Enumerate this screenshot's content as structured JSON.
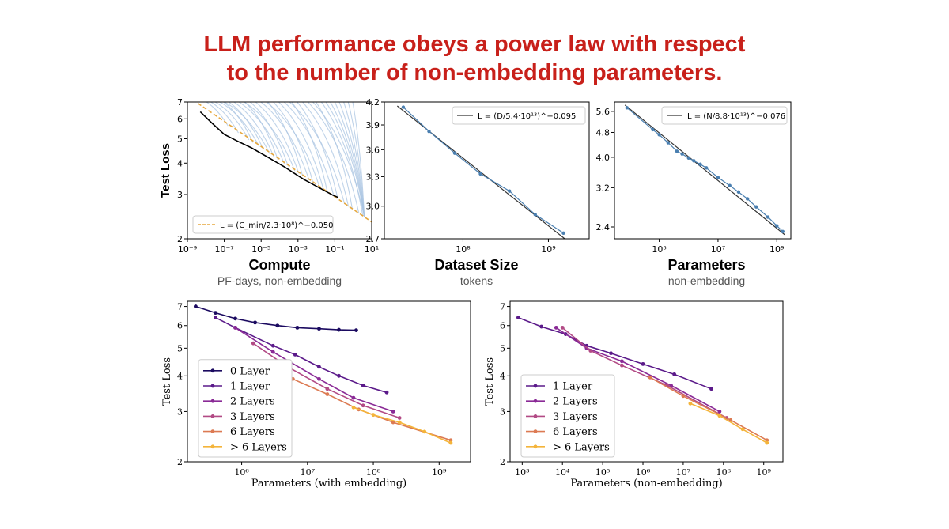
{
  "title_line1": "LLM performance obeys a power law with respect",
  "title_line2": "to the number of non-embedding parameters.",
  "captions": {
    "compute": {
      "main": "Compute",
      "sub": "PF-days, non-embedding"
    },
    "dataset": {
      "main": "Dataset Size",
      "sub": "tokens"
    },
    "params": {
      "main": "Parameters",
      "sub": "non-embedding"
    }
  },
  "colors": {
    "title": "#c8201a",
    "fit_line": "#333333",
    "data_point": "#4a7fb0",
    "dashed_fit": "#e6a73d",
    "light_curve": "#a9c4e2",
    "frontier": "#000000",
    "layers": [
      "#1b0a60",
      "#5b1a8a",
      "#8a2a96",
      "#b24a85",
      "#dc7a52",
      "#f4b43a"
    ]
  },
  "chart_data": [
    {
      "id": "compute",
      "type": "line",
      "xscale": "log",
      "yscale": "log",
      "ylabel": "Test Loss",
      "xlim": [
        1e-09,
        10
      ],
      "ylim": [
        2,
        7
      ],
      "xticks": [
        {
          "v": 1e-09,
          "label": "10⁻⁹"
        },
        {
          "v": 1e-07,
          "label": "10⁻⁷"
        },
        {
          "v": 1e-05,
          "label": "10⁻⁵"
        },
        {
          "v": 0.001,
          "label": "10⁻³"
        },
        {
          "v": 0.1,
          "label": "10⁻¹"
        },
        {
          "v": 10,
          "label": "10¹"
        }
      ],
      "yticks": [
        {
          "v": 2,
          "label": "2"
        },
        {
          "v": 3,
          "label": "3"
        },
        {
          "v": 4,
          "label": "4"
        },
        {
          "v": 5,
          "label": "5"
        },
        {
          "v": 6,
          "label": "6"
        },
        {
          "v": 7,
          "label": "7"
        }
      ],
      "legend": "L = (C_min/2.3·10⁸)^−0.050",
      "legend_position": "lower-left",
      "fit": {
        "A": 230000000.0,
        "alpha": 0.05
      },
      "frontier": [
        [
          5e-09,
          6.4
        ],
        [
          2e-08,
          5.8
        ],
        [
          1e-07,
          5.2
        ],
        [
          5e-07,
          4.9
        ],
        [
          3e-06,
          4.6
        ],
        [
          2e-05,
          4.25
        ],
        [
          0.0002,
          3.85
        ],
        [
          0.002,
          3.45
        ],
        [
          0.02,
          3.15
        ],
        [
          0.08,
          2.98
        ],
        [
          0.15,
          2.92
        ]
      ],
      "light_curves_note": "per-model learning curves"
    },
    {
      "id": "dataset",
      "type": "line",
      "xscale": "log",
      "yscale": "log",
      "xlim": [
        12000000.0,
        3000000000.0
      ],
      "ylim": [
        2.7,
        4.2
      ],
      "xticks": [
        {
          "v": 100000000.0,
          "label": "10⁸"
        },
        {
          "v": 1000000000.0,
          "label": "10⁹"
        }
      ],
      "yticks": [
        {
          "v": 2.7,
          "label": "2.7"
        },
        {
          "v": 3.0,
          "label": "3.0"
        },
        {
          "v": 3.3,
          "label": "3.3"
        },
        {
          "v": 3.6,
          "label": "3.6"
        },
        {
          "v": 3.9,
          "label": "3.9"
        },
        {
          "v": 4.2,
          "label": "4.2"
        }
      ],
      "legend": "L = (D/5.4·10¹³)^−0.095",
      "legend_position": "top-right",
      "fit": {
        "A": 54000000000000.0,
        "alpha": 0.095
      },
      "points": [
        [
          20000000.0,
          4.13
        ],
        [
          40000000.0,
          3.82
        ],
        [
          80000000.0,
          3.56
        ],
        [
          160000000.0,
          3.33
        ],
        [
          350000000.0,
          3.15
        ],
        [
          700000000.0,
          2.92
        ],
        [
          1500000000.0,
          2.75
        ]
      ]
    },
    {
      "id": "params",
      "type": "line",
      "xscale": "log",
      "yscale": "log",
      "xlim": [
        3000.0,
        3000000000.0
      ],
      "ylim": [
        2.2,
        6.0
      ],
      "xticks": [
        {
          "v": 100000.0,
          "label": "10⁵"
        },
        {
          "v": 10000000.0,
          "label": "10⁷"
        },
        {
          "v": 1000000000.0,
          "label": "10⁹"
        }
      ],
      "yticks": [
        {
          "v": 2.4,
          "label": "2.4"
        },
        {
          "v": 3.2,
          "label": "3.2"
        },
        {
          "v": 4.0,
          "label": "4.0"
        },
        {
          "v": 4.8,
          "label": "4.8"
        },
        {
          "v": 5.6,
          "label": "5.6"
        }
      ],
      "legend": "L = (N/8.8·10¹³)^−0.076",
      "legend_position": "top-right",
      "fit": {
        "A": 88000000000000.0,
        "alpha": 0.076
      },
      "points": [
        [
          8000.0,
          5.75
        ],
        [
          60000.0,
          4.9
        ],
        [
          100000.0,
          4.72
        ],
        [
          200000.0,
          4.45
        ],
        [
          400000.0,
          4.18
        ],
        [
          600000.0,
          4.1
        ],
        [
          1000000.0,
          3.98
        ],
        [
          1500000.0,
          3.9
        ],
        [
          2500000.0,
          3.8
        ],
        [
          4000000.0,
          3.7
        ],
        [
          10000000.0,
          3.45
        ],
        [
          25000000.0,
          3.25
        ],
        [
          50000000.0,
          3.1
        ],
        [
          100000000.0,
          2.95
        ],
        [
          200000000.0,
          2.78
        ],
        [
          500000000.0,
          2.58
        ],
        [
          1000000000.0,
          2.42
        ],
        [
          1600000000.0,
          2.32
        ]
      ]
    },
    {
      "id": "layers_with_emb",
      "type": "line",
      "xscale": "log",
      "yscale": "log",
      "xlabel": "Parameters (with embedding)",
      "ylabel": "Test Loss",
      "xlim": [
        150000.0,
        3000000000.0
      ],
      "ylim": [
        2,
        7.3
      ],
      "xticks": [
        {
          "v": 1000000.0,
          "label": "10⁶"
        },
        {
          "v": 10000000.0,
          "label": "10⁷"
        },
        {
          "v": 100000000.0,
          "label": "10⁸"
        },
        {
          "v": 1000000000.0,
          "label": "10⁹"
        }
      ],
      "yticks": [
        {
          "v": 2,
          "label": "2"
        },
        {
          "v": 3,
          "label": "3"
        },
        {
          "v": 4,
          "label": "4"
        },
        {
          "v": 5,
          "label": "5"
        },
        {
          "v": 6,
          "label": "6"
        },
        {
          "v": 7,
          "label": "7"
        }
      ],
      "legend_position": "lower-left",
      "series": [
        {
          "name": "0 Layer",
          "color_index": 0,
          "points": [
            [
              200000.0,
              7.0
            ],
            [
              400000.0,
              6.65
            ],
            [
              800000.0,
              6.35
            ],
            [
              1600000.0,
              6.15
            ],
            [
              3500000.0,
              6.0
            ],
            [
              7000000.0,
              5.9
            ],
            [
              15000000.0,
              5.85
            ],
            [
              30000000.0,
              5.8
            ],
            [
              55000000.0,
              5.78
            ]
          ]
        },
        {
          "name": "1 Layer",
          "color_index": 1,
          "points": [
            [
              400000.0,
              6.4
            ],
            [
              800000.0,
              5.9
            ],
            [
              3000000.0,
              5.1
            ],
            [
              6500000.0,
              4.75
            ],
            [
              15000000.0,
              4.3
            ],
            [
              30000000.0,
              4.0
            ],
            [
              70000000.0,
              3.7
            ],
            [
              160000000.0,
              3.5
            ]
          ]
        },
        {
          "name": "2 Layers",
          "color_index": 2,
          "points": [
            [
              800000.0,
              5.9
            ],
            [
              3000000.0,
              4.85
            ],
            [
              15000000.0,
              3.9
            ],
            [
              50000000.0,
              3.35
            ],
            [
              200000000.0,
              3.0
            ]
          ]
        },
        {
          "name": "3 Layers",
          "color_index": 3,
          "points": [
            [
              1500000.0,
              5.2
            ],
            [
              5000000.0,
              4.3
            ],
            [
              20000000.0,
              3.6
            ],
            [
              70000000.0,
              3.15
            ],
            [
              250000000.0,
              2.85
            ]
          ]
        },
        {
          "name": "6 Layers",
          "color_index": 4,
          "points": [
            [
              6000000.0,
              3.9
            ],
            [
              20000000.0,
              3.45
            ],
            [
              60000000.0,
              3.05
            ],
            [
              200000000.0,
              2.75
            ],
            [
              1500000000.0,
              2.38
            ]
          ]
        },
        {
          "name": "> 6 Layers",
          "color_index": 5,
          "points": [
            [
              50000000.0,
              3.1
            ],
            [
              100000000.0,
              2.92
            ],
            [
              250000000.0,
              2.75
            ],
            [
              600000000.0,
              2.55
            ],
            [
              1500000000.0,
              2.33
            ]
          ]
        }
      ]
    },
    {
      "id": "layers_non_emb",
      "type": "line",
      "xscale": "log",
      "yscale": "log",
      "xlabel": "Parameters (non-embedding)",
      "ylabel": "Test Loss",
      "xlim": [
        500,
        3000000000.0
      ],
      "ylim": [
        2,
        7.3
      ],
      "xticks": [
        {
          "v": 1000.0,
          "label": "10³"
        },
        {
          "v": 10000.0,
          "label": "10⁴"
        },
        {
          "v": 100000.0,
          "label": "10⁵"
        },
        {
          "v": 1000000.0,
          "label": "10⁶"
        },
        {
          "v": 10000000.0,
          "label": "10⁷"
        },
        {
          "v": 100000000.0,
          "label": "10⁸"
        },
        {
          "v": 1000000000.0,
          "label": "10⁹"
        }
      ],
      "yticks": [
        {
          "v": 2,
          "label": "2"
        },
        {
          "v": 3,
          "label": "3"
        },
        {
          "v": 4,
          "label": "4"
        },
        {
          "v": 5,
          "label": "5"
        },
        {
          "v": 6,
          "label": "6"
        },
        {
          "v": 7,
          "label": "7"
        }
      ],
      "legend_position": "lower-left",
      "series": [
        {
          "name": "1 Layer",
          "color_index": 1,
          "points": [
            [
              800,
              6.4
            ],
            [
              3000.0,
              5.95
            ],
            [
              12000.0,
              5.6
            ],
            [
              40000.0,
              5.1
            ],
            [
              160000.0,
              4.8
            ],
            [
              1000000.0,
              4.4
            ],
            [
              6000000.0,
              4.05
            ],
            [
              50000000.0,
              3.6
            ]
          ]
        },
        {
          "name": "2 Layers",
          "color_index": 2,
          "points": [
            [
              7000.0,
              5.9
            ],
            [
              40000.0,
              5.0
            ],
            [
              300000.0,
              4.5
            ],
            [
              5000000.0,
              3.7
            ],
            [
              80000000.0,
              3.0
            ]
          ]
        },
        {
          "name": "3 Layers",
          "color_index": 3,
          "points": [
            [
              10000.0,
              5.9
            ],
            [
              50000.0,
              4.9
            ],
            [
              300000.0,
              4.35
            ],
            [
              4000000.0,
              3.7
            ],
            [
              120000000.0,
              2.85
            ]
          ]
        },
        {
          "name": "6 Layers",
          "color_index": 4,
          "points": [
            [
              1500000.0,
              3.95
            ],
            [
              10000000.0,
              3.4
            ],
            [
              150000000.0,
              2.8
            ],
            [
              1200000000.0,
              2.38
            ]
          ]
        },
        {
          "name": "> 6 Layers",
          "color_index": 5,
          "points": [
            [
              15000000.0,
              3.2
            ],
            [
              80000000.0,
              2.9
            ],
            [
              300000000.0,
              2.6
            ],
            [
              1200000000.0,
              2.33
            ]
          ]
        }
      ]
    }
  ]
}
